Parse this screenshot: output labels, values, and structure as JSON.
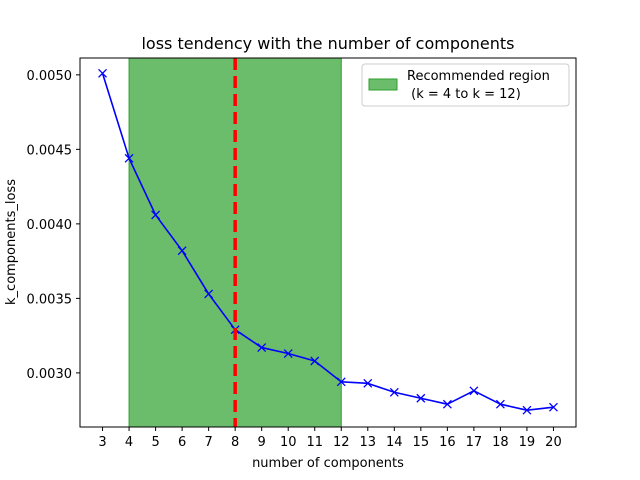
{
  "chart_data": {
    "type": "line",
    "title": "loss tendency with the number of components",
    "xlabel": "number of components",
    "ylabel": "k_components_loss",
    "x": [
      3,
      4,
      5,
      6,
      7,
      8,
      9,
      10,
      11,
      12,
      13,
      14,
      15,
      16,
      17,
      18,
      19,
      20
    ],
    "series": [
      {
        "values": [
          0.00501,
          0.00444,
          0.00406,
          0.00382,
          0.00353,
          0.00329,
          0.00317,
          0.00313,
          0.00308,
          0.00294,
          0.00293,
          0.00287,
          0.00283,
          0.00279,
          0.00288,
          0.00279,
          0.00275,
          0.00277
        ],
        "color": "#0000ff",
        "marker": "x"
      }
    ],
    "xlim": [
      2.15,
      20.85
    ],
    "ylim": [
      0.002637,
      0.005113
    ],
    "xticks": [
      3,
      4,
      5,
      6,
      7,
      8,
      9,
      10,
      11,
      12,
      13,
      14,
      15,
      16,
      17,
      18,
      19,
      20
    ],
    "yticks": [
      0.003,
      0.0035,
      0.004,
      0.0045,
      0.005
    ],
    "ytick_labels": [
      "0.0030",
      "0.0035",
      "0.0040",
      "0.0045",
      "0.0050"
    ],
    "shaded_region": {
      "x_start": 4,
      "x_end": 12,
      "color": "#2ca02c",
      "opacity": 0.7
    },
    "vertical_line": {
      "x": 8,
      "color": "#ff0000",
      "style": "dashed"
    },
    "legend": {
      "position": "top-right",
      "entries": [
        {
          "label_line1": "Recommended region",
          "label_line2": " (k = 4 to k = 12)",
          "color": "#2ca02c"
        }
      ]
    },
    "grid": false
  }
}
